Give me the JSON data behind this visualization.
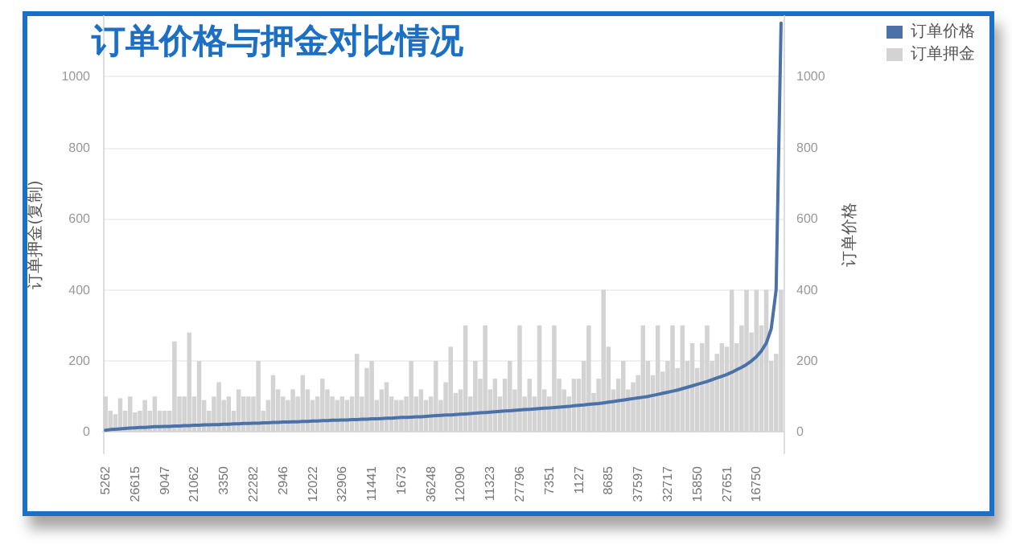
{
  "chart_data": {
    "type": "bar",
    "title": "订单价格与押金对比情况",
    "ylabel": "订单押金(复制)",
    "y2label": "订单价格",
    "categories": [
      "5262",
      null,
      null,
      null,
      null,
      null,
      "26615",
      null,
      null,
      null,
      null,
      null,
      "9047",
      null,
      null,
      null,
      null,
      null,
      "21062",
      null,
      null,
      null,
      null,
      null,
      "3350",
      null,
      null,
      null,
      null,
      null,
      "22282",
      null,
      null,
      null,
      null,
      null,
      "2946",
      null,
      null,
      null,
      null,
      null,
      "12022",
      null,
      null,
      null,
      null,
      null,
      "32906",
      null,
      null,
      null,
      null,
      null,
      "11441",
      null,
      null,
      null,
      null,
      null,
      "1673",
      null,
      null,
      null,
      null,
      null,
      "36248",
      null,
      null,
      null,
      null,
      null,
      "12090",
      null,
      null,
      null,
      null,
      null,
      "11323",
      null,
      null,
      null,
      null,
      null,
      "27796",
      null,
      null,
      null,
      null,
      null,
      "7351",
      null,
      null,
      null,
      null,
      null,
      "1127",
      null,
      null,
      null,
      null,
      null,
      "8685",
      null,
      null,
      null,
      null,
      null,
      "37597",
      null,
      null,
      null,
      null,
      null,
      "32717",
      null,
      null,
      null,
      null,
      null,
      "15850",
      null,
      null,
      null,
      null,
      null,
      "27651",
      null,
      null,
      null,
      null,
      null,
      "16750",
      null,
      null,
      null,
      null,
      null
    ],
    "series": [
      {
        "name": "订单价格",
        "type": "line",
        "axis": "y2",
        "color": "#4a72a8",
        "values": [
          5,
          7,
          8,
          9,
          10,
          11,
          12,
          13,
          13,
          14,
          15,
          15,
          16,
          16,
          17,
          17,
          18,
          18,
          19,
          19,
          20,
          20,
          21,
          21,
          22,
          22,
          23,
          23,
          24,
          24,
          25,
          25,
          26,
          26,
          27,
          27,
          28,
          28,
          29,
          29,
          30,
          30,
          31,
          31,
          32,
          32,
          33,
          33,
          34,
          34,
          35,
          35,
          36,
          36,
          37,
          37,
          38,
          39,
          39,
          40,
          41,
          41,
          42,
          43,
          43,
          44,
          45,
          46,
          47,
          48,
          48,
          49,
          50,
          51,
          52,
          53,
          54,
          55,
          56,
          57,
          58,
          59,
          60,
          61,
          62,
          63,
          64,
          65,
          66,
          67,
          68,
          69,
          70,
          71,
          72,
          74,
          75,
          76,
          78,
          79,
          80,
          82,
          84,
          86,
          88,
          90,
          92,
          94,
          96,
          98,
          100,
          103,
          106,
          109,
          112,
          115,
          118,
          122,
          126,
          130,
          134,
          138,
          142,
          147,
          152,
          157,
          162,
          168,
          175,
          182,
          190,
          200,
          212,
          228,
          250,
          290,
          400,
          1150
        ]
      },
      {
        "name": "订单押金",
        "color": "#d3d3d3",
        "values": [
          100,
          60,
          50,
          95,
          60,
          100,
          55,
          60,
          90,
          60,
          100,
          60,
          60,
          60,
          255,
          100,
          100,
          280,
          100,
          200,
          90,
          60,
          100,
          140,
          90,
          100,
          60,
          120,
          100,
          100,
          100,
          200,
          60,
          90,
          160,
          120,
          100,
          90,
          120,
          100,
          160,
          120,
          90,
          100,
          150,
          120,
          100,
          90,
          100,
          90,
          100,
          220,
          100,
          180,
          200,
          90,
          120,
          140,
          100,
          90,
          90,
          100,
          200,
          100,
          120,
          90,
          100,
          200,
          90,
          140,
          240,
          110,
          120,
          300,
          100,
          200,
          150,
          300,
          120,
          150,
          100,
          150,
          200,
          120,
          300,
          100,
          150,
          100,
          300,
          120,
          100,
          300,
          150,
          120,
          100,
          150,
          150,
          200,
          300,
          110,
          150,
          400,
          240,
          120,
          150,
          200,
          120,
          140,
          160,
          300,
          200,
          160,
          300,
          170,
          200,
          300,
          180,
          300,
          200,
          250,
          180,
          250,
          300,
          200,
          220,
          250,
          240,
          400,
          250,
          300,
          400,
          280,
          400,
          300,
          400,
          200,
          220,
          400
        ]
      }
    ],
    "ylim": [
      -60,
      1170
    ],
    "yticks": [
      0,
      200,
      400,
      600,
      800,
      1000
    ],
    "y2lim": [
      -60,
      1170
    ],
    "y2ticks": [
      0,
      200,
      400,
      600,
      800,
      1000
    ],
    "grid": "y",
    "legend": "top right"
  }
}
